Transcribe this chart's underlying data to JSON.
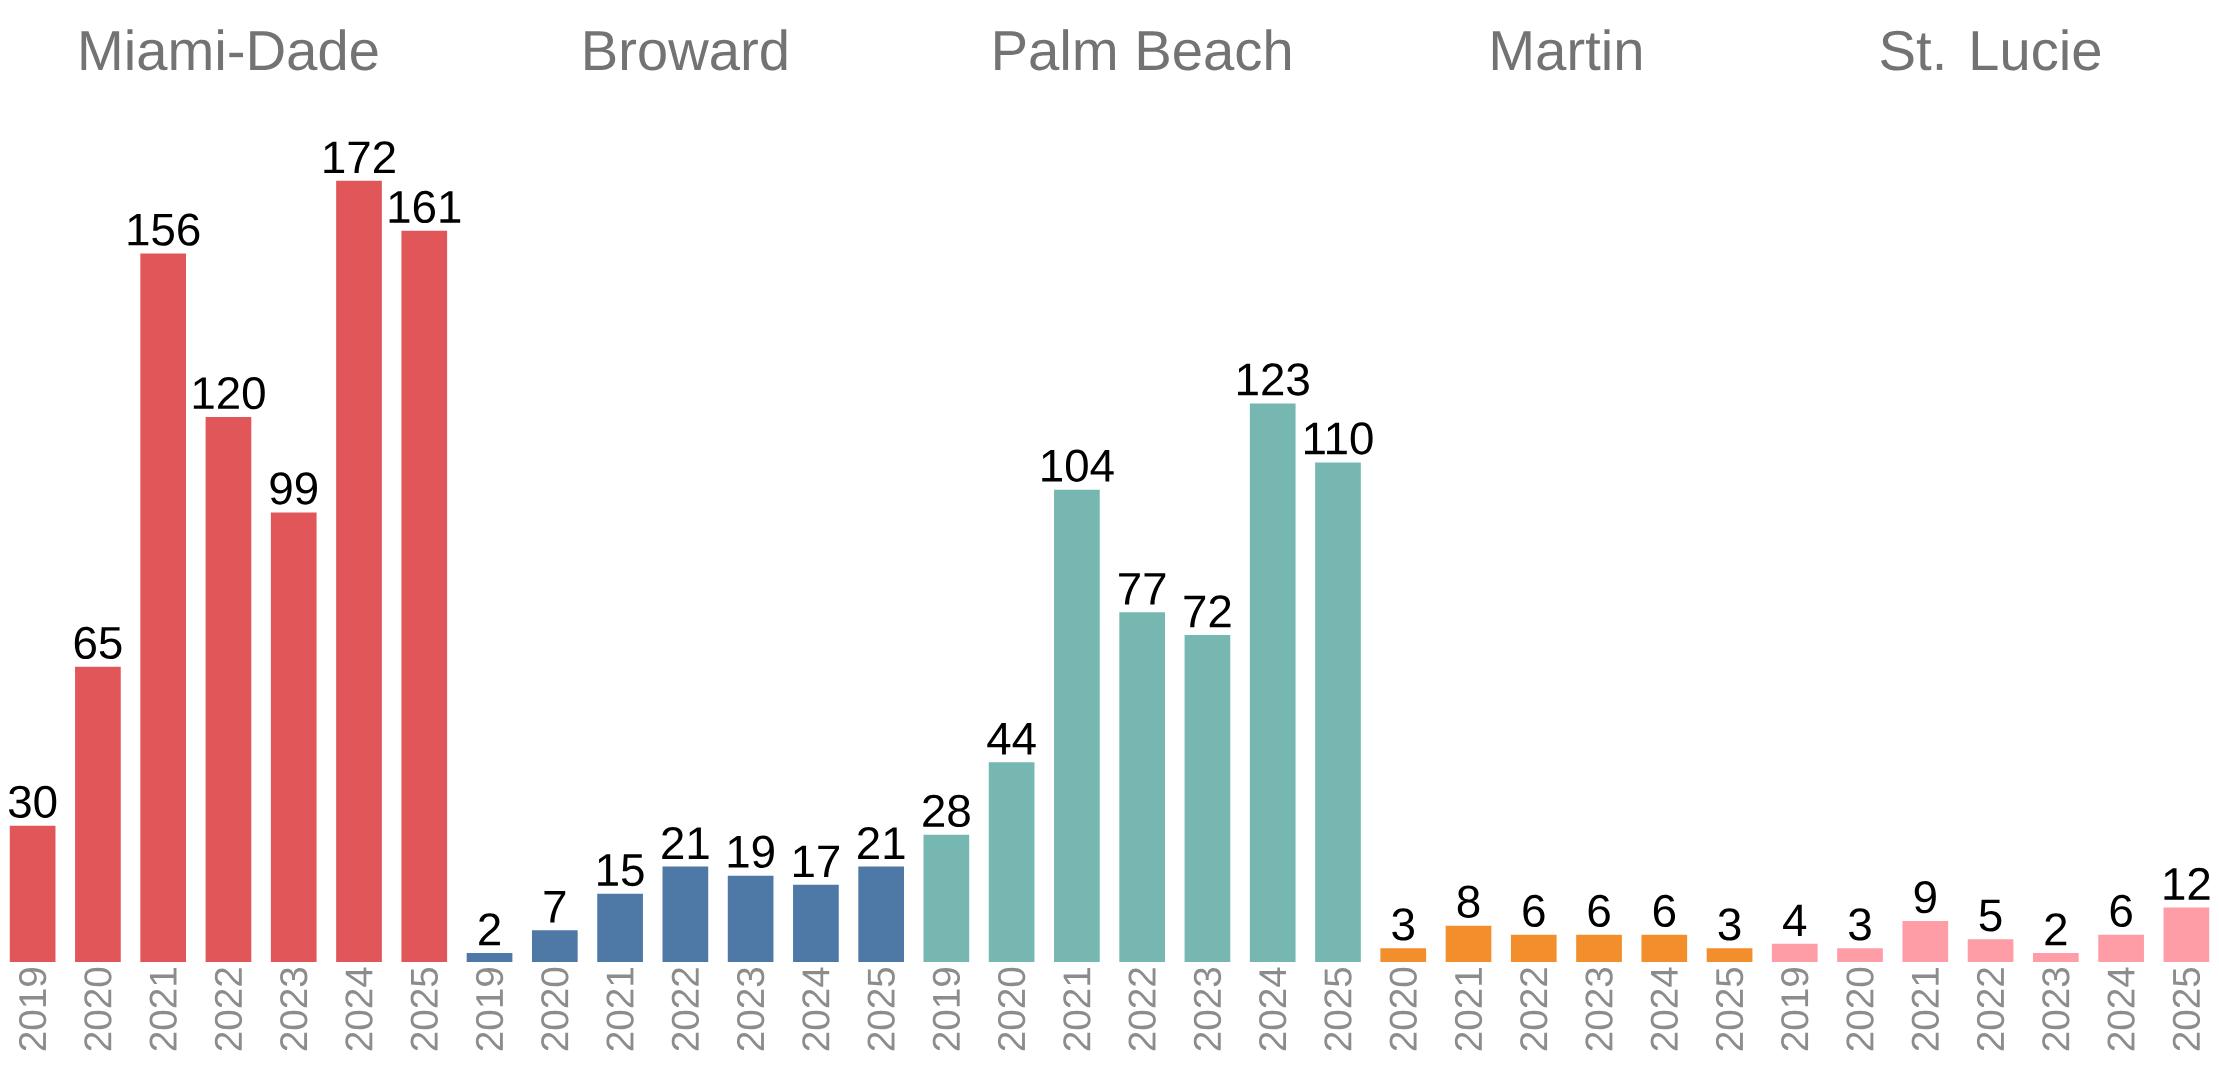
{
  "chart_data": [
    {
      "type": "bar",
      "title": "Miami-Dade",
      "categories": [
        "2019",
        "2020",
        "2021",
        "2022",
        "2023",
        "2024",
        "2025"
      ],
      "values": [
        30,
        65,
        156,
        120,
        99,
        172,
        161
      ],
      "color": "#e15759",
      "data_labels": true
    },
    {
      "type": "bar",
      "title": "Broward",
      "categories": [
        "2019",
        "2020",
        "2021",
        "2022",
        "2023",
        "2024",
        "2025"
      ],
      "values": [
        2,
        7,
        15,
        21,
        19,
        17,
        21
      ],
      "color": "#4e79a7",
      "data_labels": true
    },
    {
      "type": "bar",
      "title": "Palm Beach",
      "categories": [
        "2019",
        "2020",
        "2021",
        "2022",
        "2023",
        "2024",
        "2025"
      ],
      "values": [
        28,
        44,
        104,
        77,
        72,
        123,
        110
      ],
      "color": "#76b7b2",
      "data_labels": true
    },
    {
      "type": "bar",
      "title": "Martin",
      "categories": [
        "2020",
        "2021",
        "2022",
        "2023",
        "2024",
        "2025"
      ],
      "values": [
        3,
        8,
        6,
        6,
        6,
        3
      ],
      "color": "#f28e2b",
      "data_labels": true
    },
    {
      "type": "bar",
      "title": "St. Lucie",
      "categories": [
        "2019",
        "2020",
        "2021",
        "2022",
        "2023",
        "2024",
        "2025"
      ],
      "values": [
        4,
        3,
        9,
        5,
        2,
        6,
        12
      ],
      "color": "#ff9da7",
      "data_labels": true
    }
  ]
}
